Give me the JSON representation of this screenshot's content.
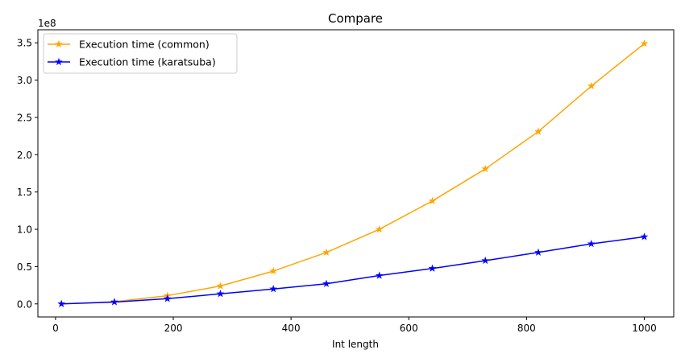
{
  "chart_data": {
    "type": "line",
    "title": "Compare",
    "xlabel": "Int length",
    "ylabel": "",
    "y_offset_label": "1e8",
    "y_scale": 100000000,
    "xlim": [
      -30,
      1050
    ],
    "ylim": [
      -0.175,
      3.675
    ],
    "x_ticks": [
      0,
      200,
      400,
      600,
      800,
      1000
    ],
    "x_tick_labels": [
      "0",
      "200",
      "400",
      "600",
      "800",
      "1000"
    ],
    "y_ticks": [
      0,
      0.5,
      1.0,
      1.5,
      2.0,
      2.5,
      3.0,
      3.5
    ],
    "y_tick_labels": [
      "0.0",
      "0.5",
      "1.0",
      "1.5",
      "2.0",
      "2.5",
      "3.0",
      "3.5"
    ],
    "grid": false,
    "legend_position": "top-left",
    "x": [
      10,
      100,
      190,
      280,
      370,
      460,
      550,
      640,
      730,
      820,
      910,
      1000
    ],
    "series": [
      {
        "name": "Execution time (common)",
        "color": "#ffa500",
        "marker": "star",
        "values": [
          0.0,
          0.03,
          0.11,
          0.24,
          0.44,
          0.69,
          1.0,
          1.38,
          1.81,
          2.31,
          2.92,
          3.49
        ]
      },
      {
        "name": "Execution time (karatsuba)",
        "color": "#0000ff",
        "marker": "star",
        "values": [
          0.0,
          0.025,
          0.07,
          0.135,
          0.2,
          0.27,
          0.38,
          0.475,
          0.58,
          0.69,
          0.805,
          0.9
        ]
      }
    ]
  }
}
